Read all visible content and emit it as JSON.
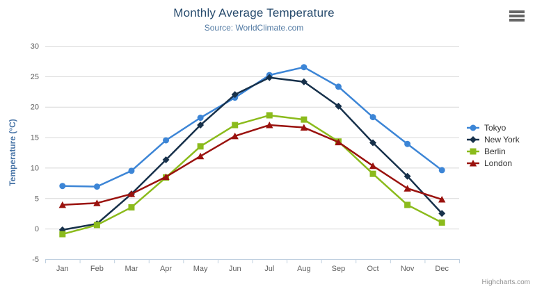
{
  "header": {
    "title": "Monthly Average Temperature",
    "subtitle": "Source: WorldClimate.com"
  },
  "credits": "Highcharts.com",
  "icons": {
    "context_menu": "hamburger-menu-icon"
  },
  "colors": {
    "title_text": "#274b6d",
    "subtitle_text": "#527aa3",
    "axis_label": "#606060",
    "axis_title": "#4874a6",
    "grid_line": "#d8d8d8",
    "axis_line": "#c0d0e0",
    "legend_text": "#333333",
    "credits_text": "#909090",
    "menu_icon": "#666666"
  },
  "chart_data": {
    "type": "line",
    "title": "Monthly Average Temperature",
    "subtitle": "Source: WorldClimate.com",
    "xlabel": "",
    "ylabel": "Temperature (°C)",
    "categories": [
      "Jan",
      "Feb",
      "Mar",
      "Apr",
      "May",
      "Jun",
      "Jul",
      "Aug",
      "Sep",
      "Oct",
      "Nov",
      "Dec"
    ],
    "ylim": [
      -5,
      30
    ],
    "ytick_step": 5,
    "grid": "horizontal",
    "legend_position": "right",
    "series": [
      {
        "name": "Tokyo",
        "color": "#3c85d6",
        "marker": "circle",
        "values": [
          7.0,
          6.9,
          9.5,
          14.5,
          18.2,
          21.5,
          25.2,
          26.5,
          23.3,
          18.3,
          13.9,
          9.6
        ]
      },
      {
        "name": "New York",
        "color": "#17314b",
        "marker": "diamond",
        "values": [
          -0.2,
          0.8,
          5.7,
          11.3,
          17.0,
          22.0,
          24.8,
          24.1,
          20.1,
          14.1,
          8.6,
          2.5
        ]
      },
      {
        "name": "Berlin",
        "color": "#8bbb1c",
        "marker": "square",
        "values": [
          -0.9,
          0.6,
          3.5,
          8.4,
          13.5,
          17.0,
          18.6,
          17.9,
          14.3,
          9.0,
          3.9,
          1.0
        ]
      },
      {
        "name": "London",
        "color": "#9a120e",
        "marker": "triangle",
        "values": [
          3.9,
          4.2,
          5.7,
          8.5,
          11.9,
          15.2,
          17.0,
          16.6,
          14.2,
          10.3,
          6.6,
          4.8
        ]
      }
    ]
  }
}
